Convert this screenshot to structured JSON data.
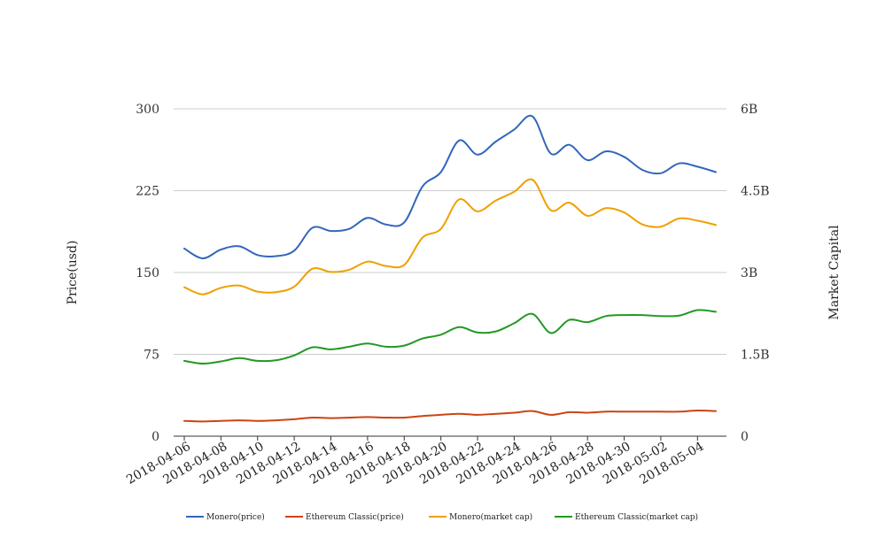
{
  "chart_data": {
    "type": "line",
    "title": "",
    "ylabel": "Price(usd)",
    "y2label": "Market Capital",
    "ylim": [
      0,
      300
    ],
    "y2lim": [
      0,
      6000000000
    ],
    "yticks": [
      {
        "value": 0,
        "label": "0"
      },
      {
        "value": 75,
        "label": "75"
      },
      {
        "value": 150,
        "label": "150"
      },
      {
        "value": 225,
        "label": "225"
      },
      {
        "value": 300,
        "label": "300"
      }
    ],
    "y2ticks": [
      {
        "value": 0,
        "label": "0"
      },
      {
        "value": 1500000000,
        "label": "1.5B"
      },
      {
        "value": 3000000000,
        "label": "3B"
      },
      {
        "value": 4500000000,
        "label": "4.5B"
      },
      {
        "value": 6000000000,
        "label": "6B"
      }
    ],
    "x": [
      "2018-04-06",
      "2018-04-07",
      "2018-04-08",
      "2018-04-09",
      "2018-04-10",
      "2018-04-11",
      "2018-04-12",
      "2018-04-13",
      "2018-04-14",
      "2018-04-15",
      "2018-04-16",
      "2018-04-17",
      "2018-04-18",
      "2018-04-19",
      "2018-04-20",
      "2018-04-21",
      "2018-04-22",
      "2018-04-23",
      "2018-04-24",
      "2018-04-25",
      "2018-04-26",
      "2018-04-27",
      "2018-04-28",
      "2018-04-29",
      "2018-04-30",
      "2018-05-01",
      "2018-05-02",
      "2018-05-03",
      "2018-05-04",
      "2018-05-05"
    ],
    "xticklabels": [
      "2018-04-06",
      "2018-04-08",
      "2018-04-10",
      "2018-04-12",
      "2018-04-14",
      "2018-04-16",
      "2018-04-18",
      "2018-04-20",
      "2018-04-22",
      "2018-04-24",
      "2018-04-26",
      "2018-04-28",
      "2018-04-30",
      "2018-05-02",
      "2018-05-04"
    ],
    "series": [
      {
        "name": "Monero(price)",
        "axis": "left",
        "color": "#3366bb",
        "values": [
          172,
          163,
          171,
          174,
          166,
          165,
          170,
          191,
          188,
          190,
          200,
          194,
          196,
          229,
          242,
          271,
          258,
          270,
          281,
          293,
          259,
          267,
          253,
          261,
          256,
          244,
          241,
          250,
          247,
          242
        ]
      },
      {
        "name": "Ethereum Classic(price)",
        "axis": "left",
        "color": "#cc4411",
        "values": [
          14,
          13.5,
          14,
          14.5,
          14,
          14.5,
          15.5,
          17,
          16.5,
          17,
          17.5,
          17,
          17,
          18.5,
          19.5,
          20.5,
          19.5,
          20.5,
          21.5,
          23,
          19.5,
          22,
          21.5,
          22.5,
          22.5,
          22.5,
          22.5,
          22.5,
          23.5,
          23
        ]
      },
      {
        "name": "Monero(market cap)",
        "axis": "right",
        "color": "#f0a000",
        "values": [
          2730000000,
          2600000000,
          2720000000,
          2760000000,
          2650000000,
          2640000000,
          2740000000,
          3070000000,
          3010000000,
          3050000000,
          3200000000,
          3120000000,
          3140000000,
          3640000000,
          3800000000,
          4340000000,
          4120000000,
          4320000000,
          4480000000,
          4700000000,
          4140000000,
          4280000000,
          4040000000,
          4180000000,
          4100000000,
          3880000000,
          3840000000,
          3990000000,
          3950000000,
          3870000000
        ]
      },
      {
        "name": "Ethereum Classic(market cap)",
        "axis": "right",
        "color": "#229922",
        "values": [
          1380000000,
          1330000000,
          1370000000,
          1430000000,
          1380000000,
          1390000000,
          1480000000,
          1630000000,
          1590000000,
          1640000000,
          1700000000,
          1640000000,
          1660000000,
          1790000000,
          1860000000,
          2000000000,
          1900000000,
          1920000000,
          2070000000,
          2240000000,
          1890000000,
          2130000000,
          2090000000,
          2200000000,
          2220000000,
          2220000000,
          2200000000,
          2210000000,
          2310000000,
          2280000000
        ]
      }
    ],
    "grid": true,
    "legend": "bottom"
  }
}
